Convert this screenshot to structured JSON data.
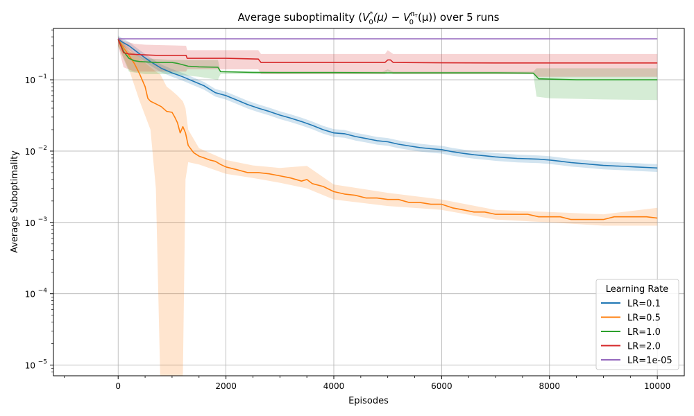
{
  "chart_data": {
    "type": "line",
    "title": "Average suboptimality (V₀*(μ) − V₀^πT(μ)) over 5 runs",
    "title_parts": {
      "prefix": "Average suboptimality (",
      "v": "V",
      "sub0": "0",
      "star": "*",
      "mu_open": "(μ) − ",
      "v2": "V",
      "sub0b": "0",
      "pi": "π",
      "pi_sub": "T",
      "mu_close": "(μ)) over 5 runs"
    },
    "xlabel": "Episodes",
    "ylabel": "Average Suboptimality",
    "xlim": [
      -1200,
      10500
    ],
    "ylim_log10": [
      -5.15,
      -0.28
    ],
    "yscale": "log",
    "x_ticks": [
      0,
      2000,
      4000,
      6000,
      8000,
      10000
    ],
    "x_tick_labels": [
      "0",
      "2000",
      "4000",
      "6000",
      "8000",
      "10000"
    ],
    "y_ticks": [
      1e-05,
      0.0001,
      0.001,
      0.01,
      0.1
    ],
    "y_tick_labels": [
      {
        "base": "10",
        "exp": "−5"
      },
      {
        "base": "10",
        "exp": "−4"
      },
      {
        "base": "10",
        "exp": "−3"
      },
      {
        "base": "10",
        "exp": "−2"
      },
      {
        "base": "10",
        "exp": "−1"
      }
    ],
    "grid": true,
    "legend": {
      "title": "Learning Rate",
      "position": "bottom-right"
    },
    "series": [
      {
        "name": "LR=0.1",
        "color": "#1f77b4",
        "points": [
          [
            0,
            0.37
          ],
          [
            100,
            0.33
          ],
          [
            200,
            0.3
          ],
          [
            400,
            0.23
          ],
          [
            600,
            0.18
          ],
          [
            800,
            0.145
          ],
          [
            1000,
            0.125
          ],
          [
            1200,
            0.11
          ],
          [
            1400,
            0.095
          ],
          [
            1600,
            0.082
          ],
          [
            1800,
            0.066
          ],
          [
            2000,
            0.06
          ],
          [
            2200,
            0.052
          ],
          [
            2400,
            0.045
          ],
          [
            2600,
            0.04
          ],
          [
            2800,
            0.036
          ],
          [
            3000,
            0.032
          ],
          [
            3200,
            0.029
          ],
          [
            3400,
            0.026
          ],
          [
            3600,
            0.023
          ],
          [
            3800,
            0.02
          ],
          [
            4000,
            0.018
          ],
          [
            4200,
            0.0175
          ],
          [
            4400,
            0.016
          ],
          [
            4600,
            0.015
          ],
          [
            4800,
            0.014
          ],
          [
            5000,
            0.0135
          ],
          [
            5200,
            0.0125
          ],
          [
            5400,
            0.0118
          ],
          [
            5600,
            0.0112
          ],
          [
            5800,
            0.0108
          ],
          [
            6000,
            0.0105
          ],
          [
            6200,
            0.0098
          ],
          [
            6400,
            0.0093
          ],
          [
            6600,
            0.0089
          ],
          [
            6800,
            0.0086
          ],
          [
            7000,
            0.0083
          ],
          [
            7200,
            0.0081
          ],
          [
            7400,
            0.0079
          ],
          [
            7600,
            0.0078
          ],
          [
            7800,
            0.0077
          ],
          [
            8000,
            0.0075
          ],
          [
            8200,
            0.0072
          ],
          [
            8400,
            0.0069
          ],
          [
            8600,
            0.0067
          ],
          [
            8800,
            0.0065
          ],
          [
            9000,
            0.0063
          ],
          [
            9200,
            0.0062
          ],
          [
            9400,
            0.0061
          ],
          [
            9600,
            0.006
          ],
          [
            9800,
            0.0059
          ],
          [
            10000,
            0.0058
          ]
        ],
        "band": {
          "lower_factor": 0.88,
          "upper_factor": 1.13
        }
      },
      {
        "name": "LR=0.5",
        "color": "#ff7f0e",
        "points": [
          [
            0,
            0.37
          ],
          [
            100,
            0.28
          ],
          [
            200,
            0.22
          ],
          [
            300,
            0.17
          ],
          [
            400,
            0.12
          ],
          [
            500,
            0.08
          ],
          [
            550,
            0.055
          ],
          [
            600,
            0.05
          ],
          [
            700,
            0.046
          ],
          [
            800,
            0.042
          ],
          [
            900,
            0.036
          ],
          [
            1000,
            0.035
          ],
          [
            1050,
            0.03
          ],
          [
            1100,
            0.025
          ],
          [
            1150,
            0.018
          ],
          [
            1200,
            0.022
          ],
          [
            1250,
            0.018
          ],
          [
            1300,
            0.012
          ],
          [
            1400,
            0.0095
          ],
          [
            1500,
            0.0085
          ],
          [
            1600,
            0.008
          ],
          [
            1700,
            0.0075
          ],
          [
            1800,
            0.0072
          ],
          [
            1900,
            0.0065
          ],
          [
            2000,
            0.006
          ],
          [
            2200,
            0.0055
          ],
          [
            2400,
            0.005
          ],
          [
            2600,
            0.005
          ],
          [
            2800,
            0.0048
          ],
          [
            3000,
            0.0045
          ],
          [
            3200,
            0.0042
          ],
          [
            3400,
            0.0038
          ],
          [
            3500,
            0.004
          ],
          [
            3600,
            0.0035
          ],
          [
            3800,
            0.0032
          ],
          [
            4000,
            0.0027
          ],
          [
            4200,
            0.0025
          ],
          [
            4400,
            0.0024
          ],
          [
            4600,
            0.0022
          ],
          [
            4800,
            0.0022
          ],
          [
            5000,
            0.0021
          ],
          [
            5200,
            0.0021
          ],
          [
            5400,
            0.0019
          ],
          [
            5600,
            0.0019
          ],
          [
            5800,
            0.0018
          ],
          [
            6000,
            0.0018
          ],
          [
            6200,
            0.0016
          ],
          [
            6400,
            0.0015
          ],
          [
            6600,
            0.0014
          ],
          [
            6800,
            0.0014
          ],
          [
            7000,
            0.0013
          ],
          [
            7200,
            0.0013
          ],
          [
            7400,
            0.0013
          ],
          [
            7600,
            0.0013
          ],
          [
            7800,
            0.0012
          ],
          [
            8000,
            0.0012
          ],
          [
            8200,
            0.0012
          ],
          [
            8400,
            0.0011
          ],
          [
            8600,
            0.0011
          ],
          [
            8800,
            0.0011
          ],
          [
            9000,
            0.0011
          ],
          [
            9200,
            0.0012
          ],
          [
            9400,
            0.0012
          ],
          [
            9600,
            0.0012
          ],
          [
            9800,
            0.0012
          ],
          [
            10000,
            0.00115
          ]
        ],
        "band_points": [
          [
            0,
            0.3,
            0.4
          ],
          [
            200,
            0.14,
            0.28
          ],
          [
            400,
            0.05,
            0.2
          ],
          [
            600,
            0.02,
            0.15
          ],
          [
            700,
            0.003,
            0.13
          ],
          [
            780,
            6e-06,
            0.12
          ],
          [
            900,
            6e-06,
            0.08
          ],
          [
            1000,
            6e-06,
            0.07
          ],
          [
            1100,
            6e-06,
            0.06
          ],
          [
            1200,
            6e-06,
            0.05
          ],
          [
            1250,
            0.004,
            0.04
          ],
          [
            1300,
            0.007,
            0.02
          ],
          [
            1500,
            0.0065,
            0.011
          ],
          [
            2000,
            0.0048,
            0.0075
          ],
          [
            2500,
            0.0042,
            0.0063
          ],
          [
            3000,
            0.0036,
            0.0058
          ],
          [
            3500,
            0.003,
            0.0062
          ],
          [
            4000,
            0.0021,
            0.0034
          ],
          [
            5000,
            0.0017,
            0.0026
          ],
          [
            6000,
            0.0015,
            0.0021
          ],
          [
            7000,
            0.0011,
            0.0015
          ],
          [
            8000,
            0.001,
            0.0014
          ],
          [
            9000,
            0.0009,
            0.0013
          ],
          [
            10000,
            0.0009,
            0.0016
          ]
        ]
      },
      {
        "name": "LR=1.0",
        "color": "#2ca02c",
        "points": [
          [
            0,
            0.37
          ],
          [
            100,
            0.25
          ],
          [
            200,
            0.2
          ],
          [
            300,
            0.185
          ],
          [
            400,
            0.18
          ],
          [
            700,
            0.175
          ],
          [
            1000,
            0.175
          ],
          [
            1100,
            0.17
          ],
          [
            1300,
            0.155
          ],
          [
            1500,
            0.152
          ],
          [
            1850,
            0.15
          ],
          [
            1900,
            0.13
          ],
          [
            2500,
            0.127
          ],
          [
            3000,
            0.126
          ],
          [
            4000,
            0.126
          ],
          [
            5000,
            0.125
          ],
          [
            6000,
            0.125
          ],
          [
            7000,
            0.125
          ],
          [
            7700,
            0.124
          ],
          [
            7800,
            0.103
          ],
          [
            8500,
            0.1
          ],
          [
            9000,
            0.1
          ],
          [
            10000,
            0.1
          ]
        ],
        "band_points": [
          [
            0,
            0.3,
            0.4
          ],
          [
            200,
            0.13,
            0.25
          ],
          [
            500,
            0.12,
            0.2
          ],
          [
            1000,
            0.12,
            0.19
          ],
          [
            1500,
            0.11,
            0.19
          ],
          [
            1850,
            0.1,
            0.19
          ],
          [
            1900,
            0.12,
            0.13
          ],
          [
            4900,
            0.12,
            0.13
          ],
          [
            5000,
            0.12,
            0.14
          ],
          [
            5100,
            0.12,
            0.13
          ],
          [
            7700,
            0.12,
            0.13
          ],
          [
            7760,
            0.058,
            0.145
          ],
          [
            8000,
            0.055,
            0.145
          ],
          [
            9000,
            0.053,
            0.145
          ],
          [
            10000,
            0.052,
            0.145
          ]
        ]
      },
      {
        "name": "LR=2.0",
        "color": "#d62728",
        "points": [
          [
            0,
            0.37
          ],
          [
            100,
            0.24
          ],
          [
            200,
            0.23
          ],
          [
            400,
            0.225
          ],
          [
            700,
            0.22
          ],
          [
            1000,
            0.22
          ],
          [
            1260,
            0.22
          ],
          [
            1280,
            0.2
          ],
          [
            2000,
            0.2
          ],
          [
            2600,
            0.195
          ],
          [
            2650,
            0.175
          ],
          [
            3000,
            0.175
          ],
          [
            4000,
            0.175
          ],
          [
            4950,
            0.175
          ],
          [
            5000,
            0.19
          ],
          [
            5050,
            0.19
          ],
          [
            5100,
            0.175
          ],
          [
            6000,
            0.173
          ],
          [
            7000,
            0.172
          ],
          [
            8000,
            0.172
          ],
          [
            9000,
            0.172
          ],
          [
            10000,
            0.172
          ]
        ],
        "band_points": [
          [
            0,
            0.3,
            0.4
          ],
          [
            100,
            0.15,
            0.35
          ],
          [
            300,
            0.13,
            0.32
          ],
          [
            500,
            0.13,
            0.31
          ],
          [
            1260,
            0.13,
            0.3
          ],
          [
            1280,
            0.14,
            0.26
          ],
          [
            2600,
            0.14,
            0.26
          ],
          [
            2650,
            0.12,
            0.23
          ],
          [
            4950,
            0.12,
            0.23
          ],
          [
            5000,
            0.13,
            0.26
          ],
          [
            5100,
            0.12,
            0.23
          ],
          [
            7700,
            0.12,
            0.23
          ],
          [
            7760,
            0.11,
            0.23
          ],
          [
            10000,
            0.11,
            0.23
          ]
        ]
      },
      {
        "name": "LR=1e-05",
        "color": "#9467bd",
        "points": [
          [
            0,
            0.375
          ],
          [
            10000,
            0.375
          ]
        ]
      }
    ]
  }
}
